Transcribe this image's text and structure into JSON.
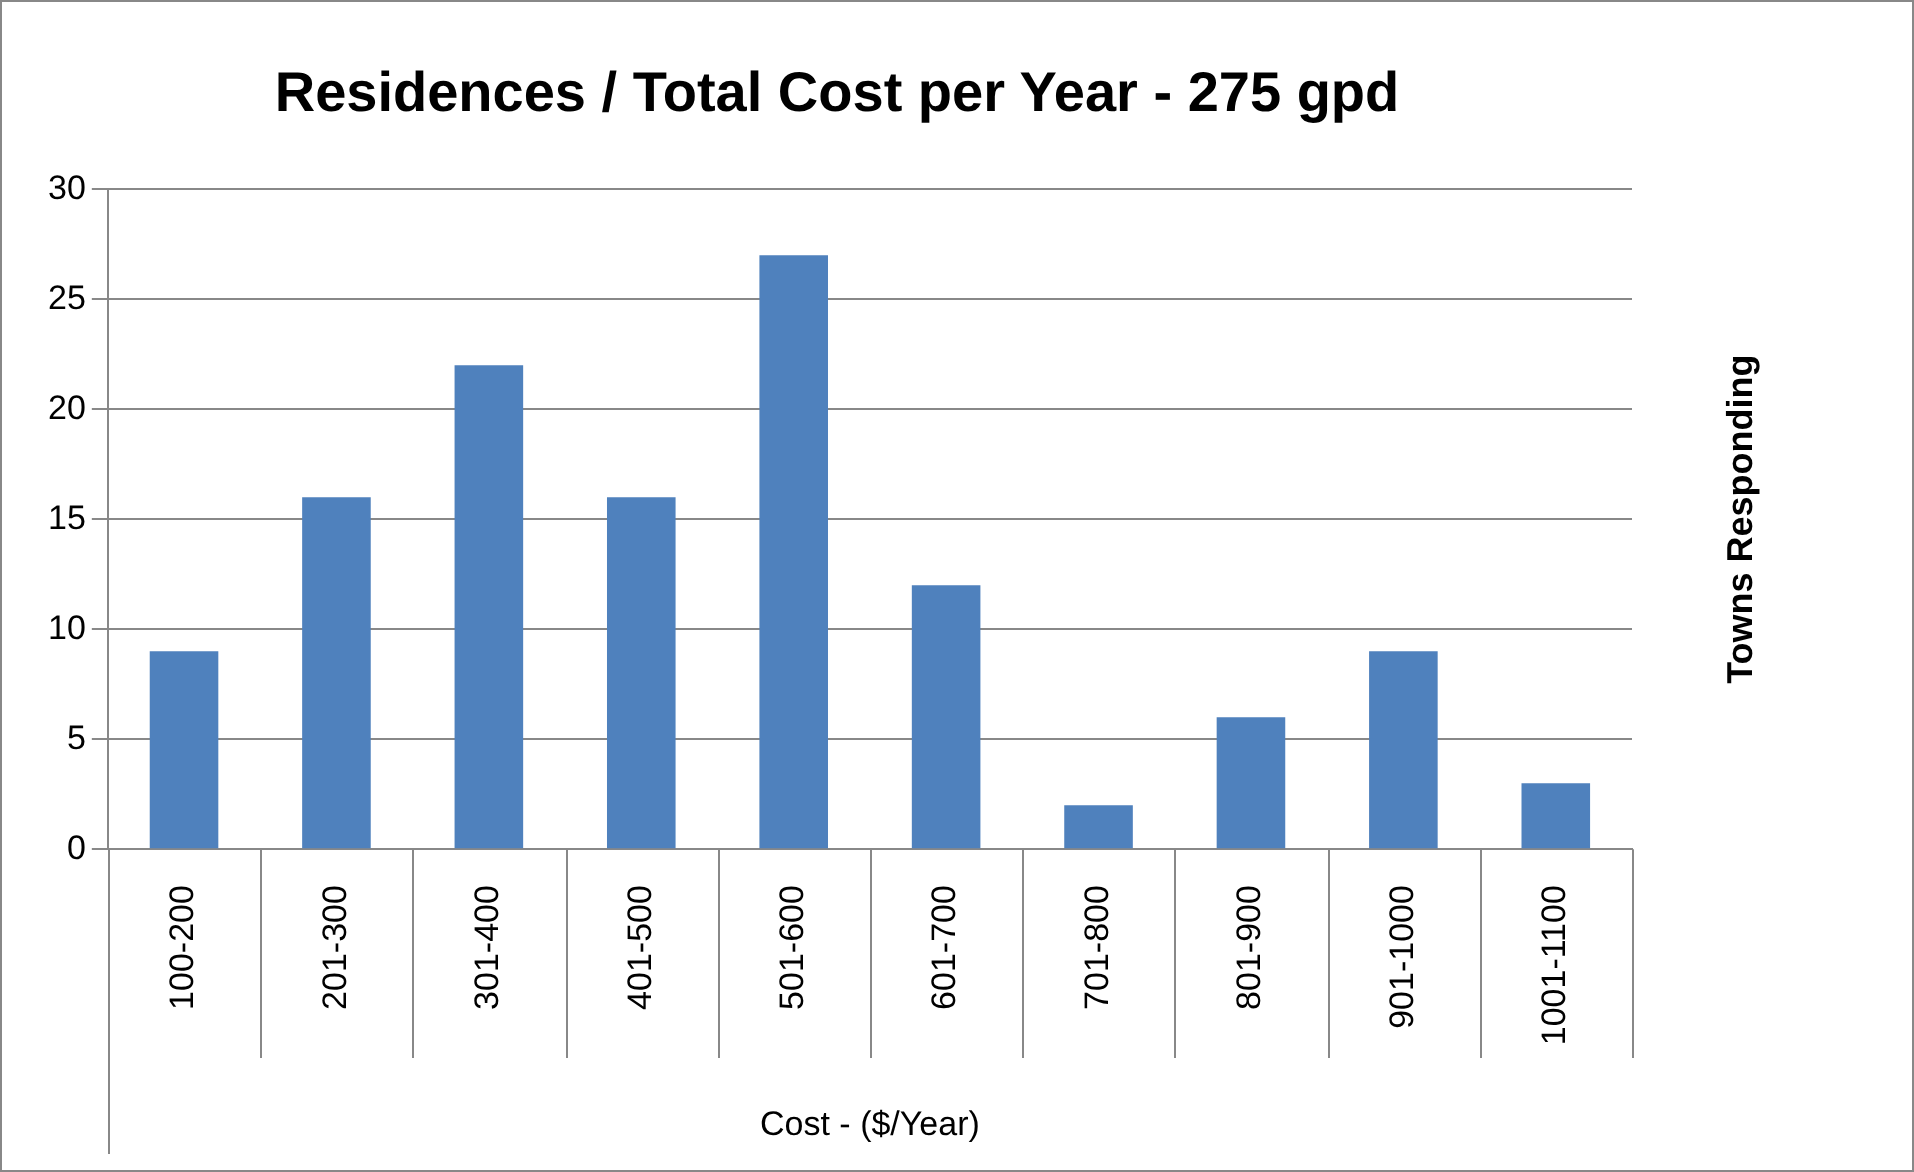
{
  "chart_data": {
    "type": "bar",
    "title": "Residences / Total Cost per Year - 275 gpd",
    "xlabel": "Cost - ($/Year)",
    "ylabel": "Towns Responding",
    "categories": [
      "100-200",
      "201-300",
      "301-400",
      "401-500",
      "501-600",
      "601-700",
      "701-800",
      "801-900",
      "901-1000",
      "1001-1100"
    ],
    "values": [
      9,
      16,
      22,
      16,
      27,
      12,
      2,
      6,
      9,
      3
    ],
    "color": "#4f81bd",
    "ylim": [
      0,
      30
    ],
    "yticks": [
      0,
      5,
      10,
      15,
      20,
      25,
      30
    ],
    "grid": "y",
    "legend": false
  }
}
